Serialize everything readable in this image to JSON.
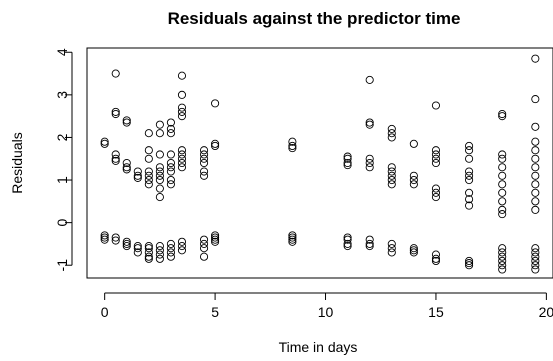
{
  "chart_data": {
    "type": "scatter",
    "title": "Residuals against the predictor time",
    "xlabel": "Time in days",
    "ylabel": "Residuals",
    "xlim": [
      -0.8,
      20.3
    ],
    "ylim": [
      -1.3,
      4.1
    ],
    "xticks": [
      0,
      5,
      10,
      15,
      20
    ],
    "yticks": [
      -1,
      0,
      1,
      2,
      3,
      4
    ],
    "grid": false,
    "legend": "none",
    "point_color": "#000000",
    "series": [
      {
        "marker": "open-circle",
        "points": [
          {
            "x": 0,
            "y": 1.9
          },
          {
            "x": 0,
            "y": 1.85
          },
          {
            "x": 0,
            "y": -0.3
          },
          {
            "x": 0,
            "y": -0.35
          },
          {
            "x": 0,
            "y": -0.4
          },
          {
            "x": 0.5,
            "y": 3.5
          },
          {
            "x": 0.5,
            "y": 2.6
          },
          {
            "x": 0.5,
            "y": 2.55
          },
          {
            "x": 0.5,
            "y": 1.6
          },
          {
            "x": 0.5,
            "y": 1.5
          },
          {
            "x": 0.5,
            "y": 1.45
          },
          {
            "x": 0.5,
            "y": -0.35
          },
          {
            "x": 0.5,
            "y": -0.42
          },
          {
            "x": 1,
            "y": 2.4
          },
          {
            "x": 1,
            "y": 2.35
          },
          {
            "x": 1,
            "y": 1.4
          },
          {
            "x": 1,
            "y": 1.3
          },
          {
            "x": 1,
            "y": 1.25
          },
          {
            "x": 1,
            "y": -0.45
          },
          {
            "x": 1,
            "y": -0.5
          },
          {
            "x": 1,
            "y": -0.55
          },
          {
            "x": 1.5,
            "y": 1.2
          },
          {
            "x": 1.5,
            "y": 1.1
          },
          {
            "x": 1.5,
            "y": 1.05
          },
          {
            "x": 1.5,
            "y": -0.55
          },
          {
            "x": 1.5,
            "y": -0.6
          },
          {
            "x": 1.5,
            "y": -0.7
          },
          {
            "x": 2,
            "y": 2.1
          },
          {
            "x": 2,
            "y": 1.7
          },
          {
            "x": 2,
            "y": 1.5
          },
          {
            "x": 2,
            "y": 1.2
          },
          {
            "x": 2,
            "y": 1.1
          },
          {
            "x": 2,
            "y": 1.0
          },
          {
            "x": 2,
            "y": 0.9
          },
          {
            "x": 2,
            "y": -0.55
          },
          {
            "x": 2,
            "y": -0.6
          },
          {
            "x": 2,
            "y": -0.7
          },
          {
            "x": 2,
            "y": -0.8
          },
          {
            "x": 2,
            "y": -0.85
          },
          {
            "x": 2.5,
            "y": 2.3
          },
          {
            "x": 2.5,
            "y": 2.1
          },
          {
            "x": 2.5,
            "y": 1.6
          },
          {
            "x": 2.5,
            "y": 1.3
          },
          {
            "x": 2.5,
            "y": 1.2
          },
          {
            "x": 2.5,
            "y": 1.1
          },
          {
            "x": 2.5,
            "y": 1.0
          },
          {
            "x": 2.5,
            "y": 0.8
          },
          {
            "x": 2.5,
            "y": 0.6
          },
          {
            "x": 2.5,
            "y": -0.55
          },
          {
            "x": 2.5,
            "y": -0.65
          },
          {
            "x": 2.5,
            "y": -0.75
          },
          {
            "x": 2.5,
            "y": -0.85
          },
          {
            "x": 3,
            "y": 2.35
          },
          {
            "x": 3,
            "y": 2.2
          },
          {
            "x": 3,
            "y": 2.1
          },
          {
            "x": 3,
            "y": 1.6
          },
          {
            "x": 3,
            "y": 1.4
          },
          {
            "x": 3,
            "y": 1.3
          },
          {
            "x": 3,
            "y": 1.2
          },
          {
            "x": 3,
            "y": 1.0
          },
          {
            "x": 3,
            "y": 0.9
          },
          {
            "x": 3,
            "y": -0.5
          },
          {
            "x": 3,
            "y": -0.6
          },
          {
            "x": 3,
            "y": -0.7
          },
          {
            "x": 3,
            "y": -0.8
          },
          {
            "x": 3.5,
            "y": 3.45
          },
          {
            "x": 3.5,
            "y": 3.0
          },
          {
            "x": 3.5,
            "y": 2.7
          },
          {
            "x": 3.5,
            "y": 2.6
          },
          {
            "x": 3.5,
            "y": 2.5
          },
          {
            "x": 3.5,
            "y": 1.7
          },
          {
            "x": 3.5,
            "y": 1.6
          },
          {
            "x": 3.5,
            "y": 1.5
          },
          {
            "x": 3.5,
            "y": 1.4
          },
          {
            "x": 3.5,
            "y": 1.3
          },
          {
            "x": 3.5,
            "y": -0.45
          },
          {
            "x": 3.5,
            "y": -0.55
          },
          {
            "x": 3.5,
            "y": -0.65
          },
          {
            "x": 4.5,
            "y": 1.7
          },
          {
            "x": 4.5,
            "y": 1.6
          },
          {
            "x": 4.5,
            "y": 1.5
          },
          {
            "x": 4.5,
            "y": 1.4
          },
          {
            "x": 4.5,
            "y": 1.2
          },
          {
            "x": 4.5,
            "y": 1.1
          },
          {
            "x": 4.5,
            "y": -0.4
          },
          {
            "x": 4.5,
            "y": -0.5
          },
          {
            "x": 4.5,
            "y": -0.6
          },
          {
            "x": 4.5,
            "y": -0.8
          },
          {
            "x": 5,
            "y": 2.8
          },
          {
            "x": 5,
            "y": 1.85
          },
          {
            "x": 5,
            "y": 1.8
          },
          {
            "x": 5,
            "y": -0.3
          },
          {
            "x": 5,
            "y": -0.35
          },
          {
            "x": 5,
            "y": -0.4
          },
          {
            "x": 5,
            "y": -0.45
          },
          {
            "x": 8.5,
            "y": 1.9
          },
          {
            "x": 8.5,
            "y": 1.8
          },
          {
            "x": 8.5,
            "y": 1.75
          },
          {
            "x": 8.5,
            "y": -0.3
          },
          {
            "x": 8.5,
            "y": -0.35
          },
          {
            "x": 8.5,
            "y": -0.4
          },
          {
            "x": 8.5,
            "y": -0.45
          },
          {
            "x": 11,
            "y": 1.55
          },
          {
            "x": 11,
            "y": 1.5
          },
          {
            "x": 11,
            "y": 1.4
          },
          {
            "x": 11,
            "y": 1.35
          },
          {
            "x": 11,
            "y": -0.35
          },
          {
            "x": 11,
            "y": -0.4
          },
          {
            "x": 11,
            "y": -0.5
          },
          {
            "x": 11,
            "y": -0.55
          },
          {
            "x": 12,
            "y": 3.35
          },
          {
            "x": 12,
            "y": 2.35
          },
          {
            "x": 12,
            "y": 2.3
          },
          {
            "x": 12,
            "y": 1.5
          },
          {
            "x": 12,
            "y": 1.4
          },
          {
            "x": 12,
            "y": 1.3
          },
          {
            "x": 12,
            "y": -0.4
          },
          {
            "x": 12,
            "y": -0.5
          },
          {
            "x": 12,
            "y": -0.55
          },
          {
            "x": 13,
            "y": 2.2
          },
          {
            "x": 13,
            "y": 2.1
          },
          {
            "x": 13,
            "y": 2.0
          },
          {
            "x": 13,
            "y": 1.3
          },
          {
            "x": 13,
            "y": 1.2
          },
          {
            "x": 13,
            "y": 1.1
          },
          {
            "x": 13,
            "y": 1.0
          },
          {
            "x": 13,
            "y": 0.9
          },
          {
            "x": 13,
            "y": -0.5
          },
          {
            "x": 13,
            "y": -0.6
          },
          {
            "x": 13,
            "y": -0.7
          },
          {
            "x": 14,
            "y": 1.85
          },
          {
            "x": 14,
            "y": 1.1
          },
          {
            "x": 14,
            "y": 1.0
          },
          {
            "x": 14,
            "y": 0.9
          },
          {
            "x": 14,
            "y": -0.6
          },
          {
            "x": 14,
            "y": -0.65
          },
          {
            "x": 14,
            "y": -0.7
          },
          {
            "x": 15,
            "y": 2.75
          },
          {
            "x": 15,
            "y": 1.7
          },
          {
            "x": 15,
            "y": 1.6
          },
          {
            "x": 15,
            "y": 1.5
          },
          {
            "x": 15,
            "y": 1.4
          },
          {
            "x": 15,
            "y": 0.8
          },
          {
            "x": 15,
            "y": 0.7
          },
          {
            "x": 15,
            "y": 0.6
          },
          {
            "x": 15,
            "y": -0.75
          },
          {
            "x": 15,
            "y": -0.85
          },
          {
            "x": 15,
            "y": -0.9
          },
          {
            "x": 16.5,
            "y": 1.8
          },
          {
            "x": 16.5,
            "y": 1.7
          },
          {
            "x": 16.5,
            "y": 1.5
          },
          {
            "x": 16.5,
            "y": 1.2
          },
          {
            "x": 16.5,
            "y": 1.1
          },
          {
            "x": 16.5,
            "y": 1.0
          },
          {
            "x": 16.5,
            "y": 0.7
          },
          {
            "x": 16.5,
            "y": 0.55
          },
          {
            "x": 16.5,
            "y": 0.4
          },
          {
            "x": 16.5,
            "y": -0.9
          },
          {
            "x": 16.5,
            "y": -0.95
          },
          {
            "x": 16.5,
            "y": -1.0
          },
          {
            "x": 18,
            "y": 2.55
          },
          {
            "x": 18,
            "y": 2.5
          },
          {
            "x": 18,
            "y": 1.6
          },
          {
            "x": 18,
            "y": 1.5
          },
          {
            "x": 18,
            "y": 1.3
          },
          {
            "x": 18,
            "y": 1.1
          },
          {
            "x": 18,
            "y": 0.9
          },
          {
            "x": 18,
            "y": 0.7
          },
          {
            "x": 18,
            "y": 0.5
          },
          {
            "x": 18,
            "y": 0.3
          },
          {
            "x": 18,
            "y": 0.2
          },
          {
            "x": 18,
            "y": -0.6
          },
          {
            "x": 18,
            "y": -0.7
          },
          {
            "x": 18,
            "y": -0.8
          },
          {
            "x": 18,
            "y": -0.9
          },
          {
            "x": 18,
            "y": -1.0
          },
          {
            "x": 18,
            "y": -1.1
          },
          {
            "x": 19.5,
            "y": 3.85
          },
          {
            "x": 19.5,
            "y": 2.9
          },
          {
            "x": 19.5,
            "y": 2.25
          },
          {
            "x": 19.5,
            "y": 1.9
          },
          {
            "x": 19.5,
            "y": 1.7
          },
          {
            "x": 19.5,
            "y": 1.5
          },
          {
            "x": 19.5,
            "y": 1.3
          },
          {
            "x": 19.5,
            "y": 1.1
          },
          {
            "x": 19.5,
            "y": 0.9
          },
          {
            "x": 19.5,
            "y": 0.7
          },
          {
            "x": 19.5,
            "y": 0.5
          },
          {
            "x": 19.5,
            "y": 0.3
          },
          {
            "x": 19.5,
            "y": -0.6
          },
          {
            "x": 19.5,
            "y": -0.7
          },
          {
            "x": 19.5,
            "y": -0.8
          },
          {
            "x": 19.5,
            "y": -0.9
          },
          {
            "x": 19.5,
            "y": -1.0
          },
          {
            "x": 19.5,
            "y": -1.1
          }
        ]
      }
    ]
  }
}
